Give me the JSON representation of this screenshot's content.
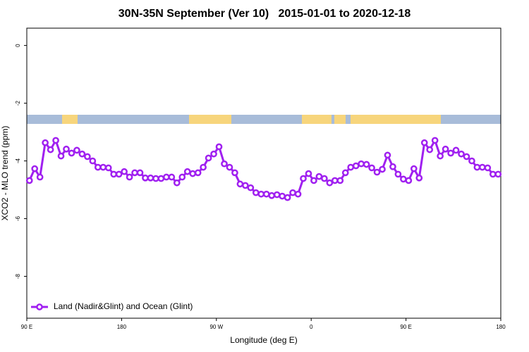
{
  "chart_data": {
    "type": "line",
    "title": "30N-35N September (Ver 10)   2015-01-01 to 2020-12-18",
    "xlabel": "Longitude (deg E)",
    "ylabel": "XCO2 - MLO trend (ppm)",
    "xlim": [
      90,
      540
    ],
    "ylim": [
      -9.45,
      0.6
    ],
    "xticks": [
      {
        "value": 90,
        "label": "90 E"
      },
      180,
      {
        "value": 270,
        "label": "90 W"
      },
      {
        "value": 360,
        "label": "0"
      },
      {
        "value": 450,
        "label": "90 E"
      },
      {
        "value": 540,
        "label": "180"
      }
    ],
    "yticks": [
      0,
      -2,
      -4,
      -6,
      -8
    ],
    "legend": "bottom-left",
    "x": [
      92.5,
      97.5,
      102.5,
      107.5,
      112.5,
      117.5,
      122.5,
      127.5,
      132.5,
      137.5,
      142.5,
      147.5,
      152.5,
      157.5,
      162.5,
      167.5,
      172.5,
      177.5,
      182.5,
      187.5,
      192.5,
      197.5,
      202.5,
      207.5,
      212.5,
      217.5,
      222.5,
      227.5,
      232.5,
      237.5,
      242.5,
      247.5,
      252.5,
      257.5,
      262.5,
      267.5,
      272.5,
      277.5,
      282.5,
      287.5,
      292.5,
      297.5,
      302.5,
      307.5,
      312.5,
      317.5,
      322.5,
      327.5,
      332.5,
      337.5,
      342.5,
      347.5,
      352.5,
      357.5,
      362.5,
      367.5,
      372.5,
      377.5,
      382.5,
      387.5,
      392.5,
      397.5,
      402.5,
      407.5,
      412.5,
      417.5,
      422.5,
      427.5,
      432.5,
      437.5,
      442.5,
      447.5,
      452.5,
      457.5,
      462.5,
      467.5,
      472.5,
      477.5,
      482.5,
      487.5,
      492.5,
      497.5,
      502.5,
      507.5,
      512.5,
      517.5,
      522.5,
      527.5,
      532.5,
      537.5
    ],
    "series": [
      {
        "name": "Land (Nadir&Glint) and Ocean (Glint)",
        "color": "#a020f0",
        "values": [
          -4.68,
          -4.27,
          -4.56,
          -3.37,
          -3.61,
          -3.29,
          -3.83,
          -3.59,
          -3.73,
          -3.63,
          -3.76,
          -3.85,
          -4.0,
          -4.22,
          -4.22,
          -4.24,
          -4.46,
          -4.46,
          -4.37,
          -4.56,
          -4.41,
          -4.41,
          -4.59,
          -4.59,
          -4.61,
          -4.61,
          -4.56,
          -4.56,
          -4.76,
          -4.56,
          -4.37,
          -4.44,
          -4.41,
          -4.22,
          -3.9,
          -3.76,
          -3.51,
          -4.1,
          -4.22,
          -4.41,
          -4.8,
          -4.85,
          -4.93,
          -5.1,
          -5.15,
          -5.15,
          -5.2,
          -5.17,
          -5.22,
          -5.27,
          -5.1,
          -5.15,
          -4.61,
          -4.44,
          -4.68,
          -4.54,
          -4.61,
          -4.76,
          -4.68,
          -4.68,
          -4.41,
          -4.22,
          -4.17,
          -4.1,
          -4.12,
          -4.24,
          -4.39,
          -4.29,
          -3.8,
          -4.2,
          -4.46,
          -4.63,
          -4.68,
          -4.27,
          -4.59,
          -3.37,
          -3.61,
          -3.29,
          -3.83,
          -3.59,
          -3.73,
          -3.63,
          -3.76,
          -3.85,
          -4.0,
          -4.22,
          -4.22,
          -4.24,
          -4.46,
          -4.46
        ]
      }
    ]
  }
}
